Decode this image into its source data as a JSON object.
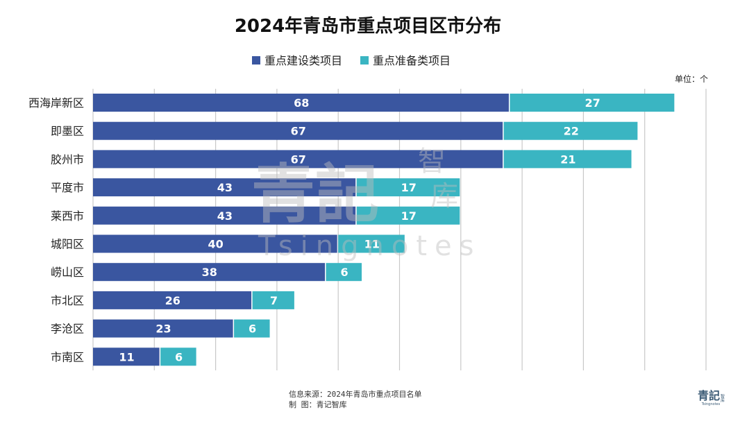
{
  "chart_data": {
    "type": "bar",
    "orientation": "horizontal",
    "stacked": true,
    "title": "2024年青岛市重点项目区市分布",
    "unit_label": "单位：个",
    "categories": [
      "西海岸新区",
      "即墨区",
      "胶州市",
      "平度市",
      "莱西市",
      "城阳区",
      "崂山区",
      "市北区",
      "李沧区",
      "市南区"
    ],
    "series": [
      {
        "name": "重点建设类项目",
        "color": "#3a56a0",
        "values": [
          68,
          67,
          67,
          43,
          43,
          40,
          38,
          26,
          23,
          11
        ]
      },
      {
        "name": "重点准备类项目",
        "color": "#3ab5c2",
        "values": [
          27,
          22,
          21,
          17,
          17,
          11,
          6,
          7,
          6,
          6
        ]
      }
    ],
    "xlim": [
      0,
      100
    ],
    "grid_step": 10,
    "grid": true,
    "legend_position": "top-center",
    "data_label_color": "#ffffff"
  },
  "watermark": {
    "main": "青記",
    "side_top": "智",
    "side_bottom": "库",
    "latin": "Tsingnotes"
  },
  "footer": {
    "source_line": "信息来源：2024年青岛市重点项目名单",
    "maker_line": "制    图：青记智库"
  },
  "logo": {
    "main": "青記",
    "side": "智库",
    "latin": "Tsingnotes"
  }
}
